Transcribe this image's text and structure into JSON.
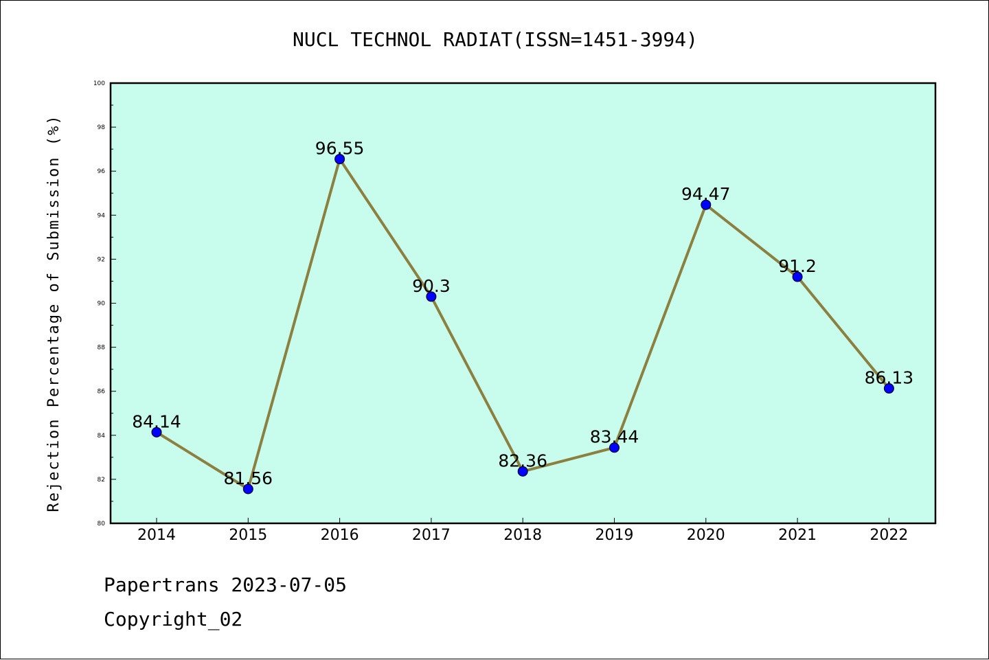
{
  "chart_data": {
    "type": "line",
    "title": "NUCL TECHNOL RADIAT(ISSN=1451-3994)",
    "xlabel": "",
    "ylabel": "Rejection Percentage of Submission (%)",
    "categories": [
      "2014",
      "2015",
      "2016",
      "2017",
      "2018",
      "2019",
      "2020",
      "2021",
      "2022"
    ],
    "series": [
      {
        "values": [
          84.14,
          81.56,
          96.55,
          90.3,
          82.36,
          83.44,
          94.47,
          91.2,
          86.13
        ],
        "data_labels": [
          "84.14",
          "81.56",
          "96.55",
          "90.3",
          "82.36",
          "83.44",
          "94.47",
          "91.2",
          "86.13"
        ]
      }
    ],
    "ylim": [
      80,
      100
    ],
    "yticks": [
      80,
      82,
      84,
      86,
      88,
      90,
      92,
      94,
      96,
      98,
      100
    ],
    "grid": false,
    "colors": {
      "plot_background": "#c8fcec",
      "line": "#8b8040",
      "marker": "#0000ff"
    }
  },
  "footer": {
    "line1": "Papertrans 2023-07-05",
    "line2": "Copyright_02"
  }
}
